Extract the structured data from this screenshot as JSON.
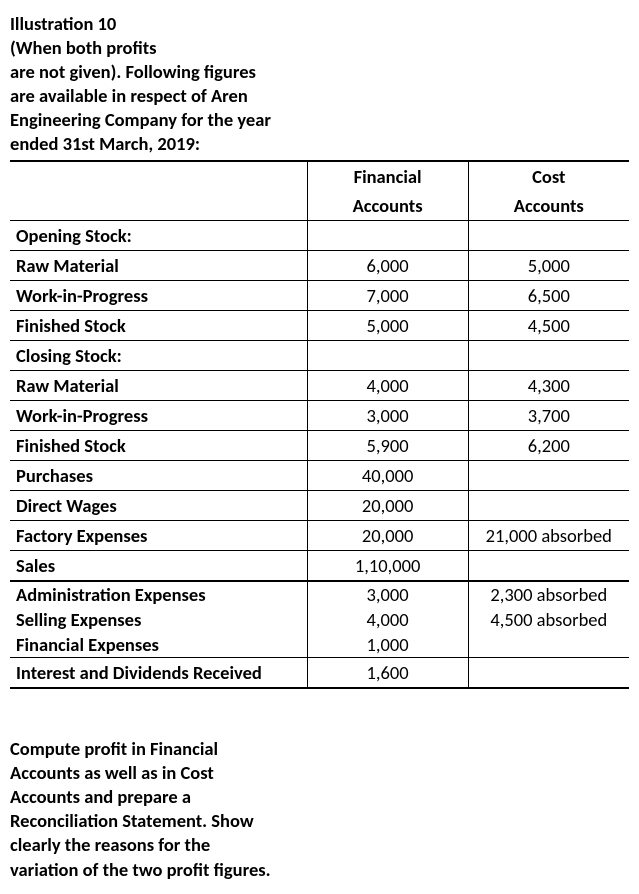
{
  "intro_lines": [
    "Illustration 10",
    "(When both profits",
    " are not given). Following figures",
    "are available in respect of Aren",
    "Engineering Company for the year",
    "ended 31st March, 2019:"
  ],
  "headers": {
    "fin1": "Financial",
    "fin2": "Accounts",
    "cost1": "Cost",
    "cost2": "Accounts"
  },
  "sections": {
    "opening": "Opening Stock:",
    "closing": "Closing Stock:"
  },
  "rows": {
    "raw1": {
      "label": "Raw Material",
      "fin": "6,000",
      "cost": "5,000"
    },
    "wip1": {
      "label": "Work-in-Progress",
      "fin": "7,000",
      "cost": "6,500"
    },
    "fin1": {
      "label": "Finished Stock",
      "fin": "5,000",
      "cost": "4,500"
    },
    "raw2": {
      "label": "Raw Material",
      "fin": "4,000",
      "cost": "4,300"
    },
    "wip2": {
      "label": "Work-in-Progress",
      "fin": "3,000",
      "cost": "3,700"
    },
    "fin2": {
      "label": "Finished Stock",
      "fin": "5,900",
      "cost": "6,200"
    },
    "purch": {
      "label": "Purchases",
      "fin": "40,000",
      "cost": ""
    },
    "wages": {
      "label": "Direct Wages",
      "fin": "20,000",
      "cost": ""
    },
    "fexp": {
      "label": "Factory Expenses",
      "fin": "20,000",
      "cost": "21,000 absorbed"
    },
    "sales": {
      "label": "Sales",
      "fin": "1,10,000",
      "cost": ""
    },
    "admin": {
      "label": "Administration Expenses",
      "fin": "3,000",
      "cost": "2,300 absorbed"
    },
    "sell": {
      "label": "Selling Expenses",
      "fin": "4,000",
      "cost": "4,500 absorbed"
    },
    "finexp": {
      "label": "Financial Expenses",
      "fin": "1,000",
      "cost": ""
    },
    "intdiv": {
      "label": "Interest and Dividends Received",
      "fin": "1,600",
      "cost": ""
    }
  },
  "outro_lines": [
    "Compute profit in Financial",
    "Accounts as well as in Cost",
    "Accounts and prepare a",
    "Reconciliation Statement. Show",
    "clearly the reasons for the",
    "variation of the two profit figures."
  ]
}
